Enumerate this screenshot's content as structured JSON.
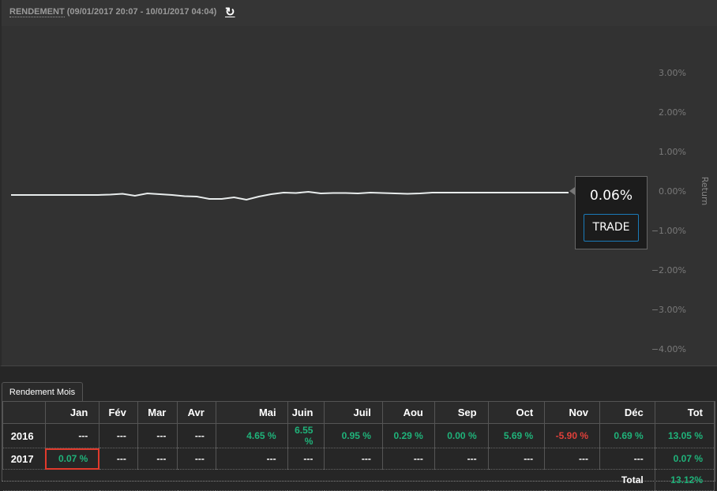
{
  "header": {
    "title": "RENDEMENT",
    "range": "(09/01/2017 20:07 - 10/01/2017 04:04)",
    "refresh_icon": "refresh-icon"
  },
  "chart_data": {
    "type": "line",
    "ylabel": "Return",
    "ylim": [
      -4.2,
      3.9
    ],
    "yticks": [
      "3.00%",
      "2.00%",
      "1.00%",
      "0.00%",
      "−1.00%",
      "−2.00%",
      "−3.00%",
      "−4.00%"
    ],
    "ytick_values": [
      3,
      2,
      1,
      0,
      -1,
      -2,
      -3,
      -4
    ],
    "grid": false,
    "series": [
      {
        "color": "#e8ecec",
        "values": [
          -0.1,
          -0.1,
          -0.1,
          -0.1,
          -0.1,
          -0.1,
          -0.1,
          -0.1,
          -0.09,
          -0.07,
          -0.12,
          -0.06,
          -0.08,
          -0.1,
          -0.13,
          -0.14,
          -0.2,
          -0.2,
          -0.16,
          -0.22,
          -0.14,
          -0.08,
          -0.04,
          -0.05,
          -0.02,
          -0.06,
          -0.05,
          -0.05,
          -0.06,
          -0.04,
          -0.05,
          -0.06,
          -0.07,
          -0.06,
          -0.04,
          -0.04,
          -0.04,
          -0.04,
          -0.04,
          -0.04,
          -0.04,
          -0.04,
          -0.04,
          -0.04,
          -0.04,
          -0.04
        ]
      }
    ]
  },
  "tooltip": {
    "value": "0.06%",
    "button": "TRADE"
  },
  "tab": {
    "label": "Rendement Mois"
  },
  "table": {
    "headers": [
      "",
      "Jan",
      "Fév",
      "Mar",
      "Avr",
      "Mai",
      "Juin",
      "Juil",
      "Aou",
      "Sep",
      "Oct",
      "Nov",
      "Déc",
      "Tot"
    ],
    "rows": [
      {
        "year": "2016",
        "cells": [
          "---",
          "---",
          "---",
          "---",
          "4.65 %",
          "6.55 %",
          "0.95 %",
          "0.29 %",
          "0.00 %",
          "5.69 %",
          "-5.90 %",
          "0.69 %",
          "13.05 %"
        ]
      },
      {
        "year": "2017",
        "cells": [
          "0.07 %",
          "---",
          "---",
          "---",
          "---",
          "---",
          "---",
          "---",
          "---",
          "---",
          "---",
          "---",
          "0.07 %"
        ]
      }
    ],
    "total_label": "Total",
    "total_value": "13.12%",
    "colors": {
      "positive": "#1fb37a",
      "negative": "#e0403a",
      "selected": "#e03a2c"
    }
  }
}
